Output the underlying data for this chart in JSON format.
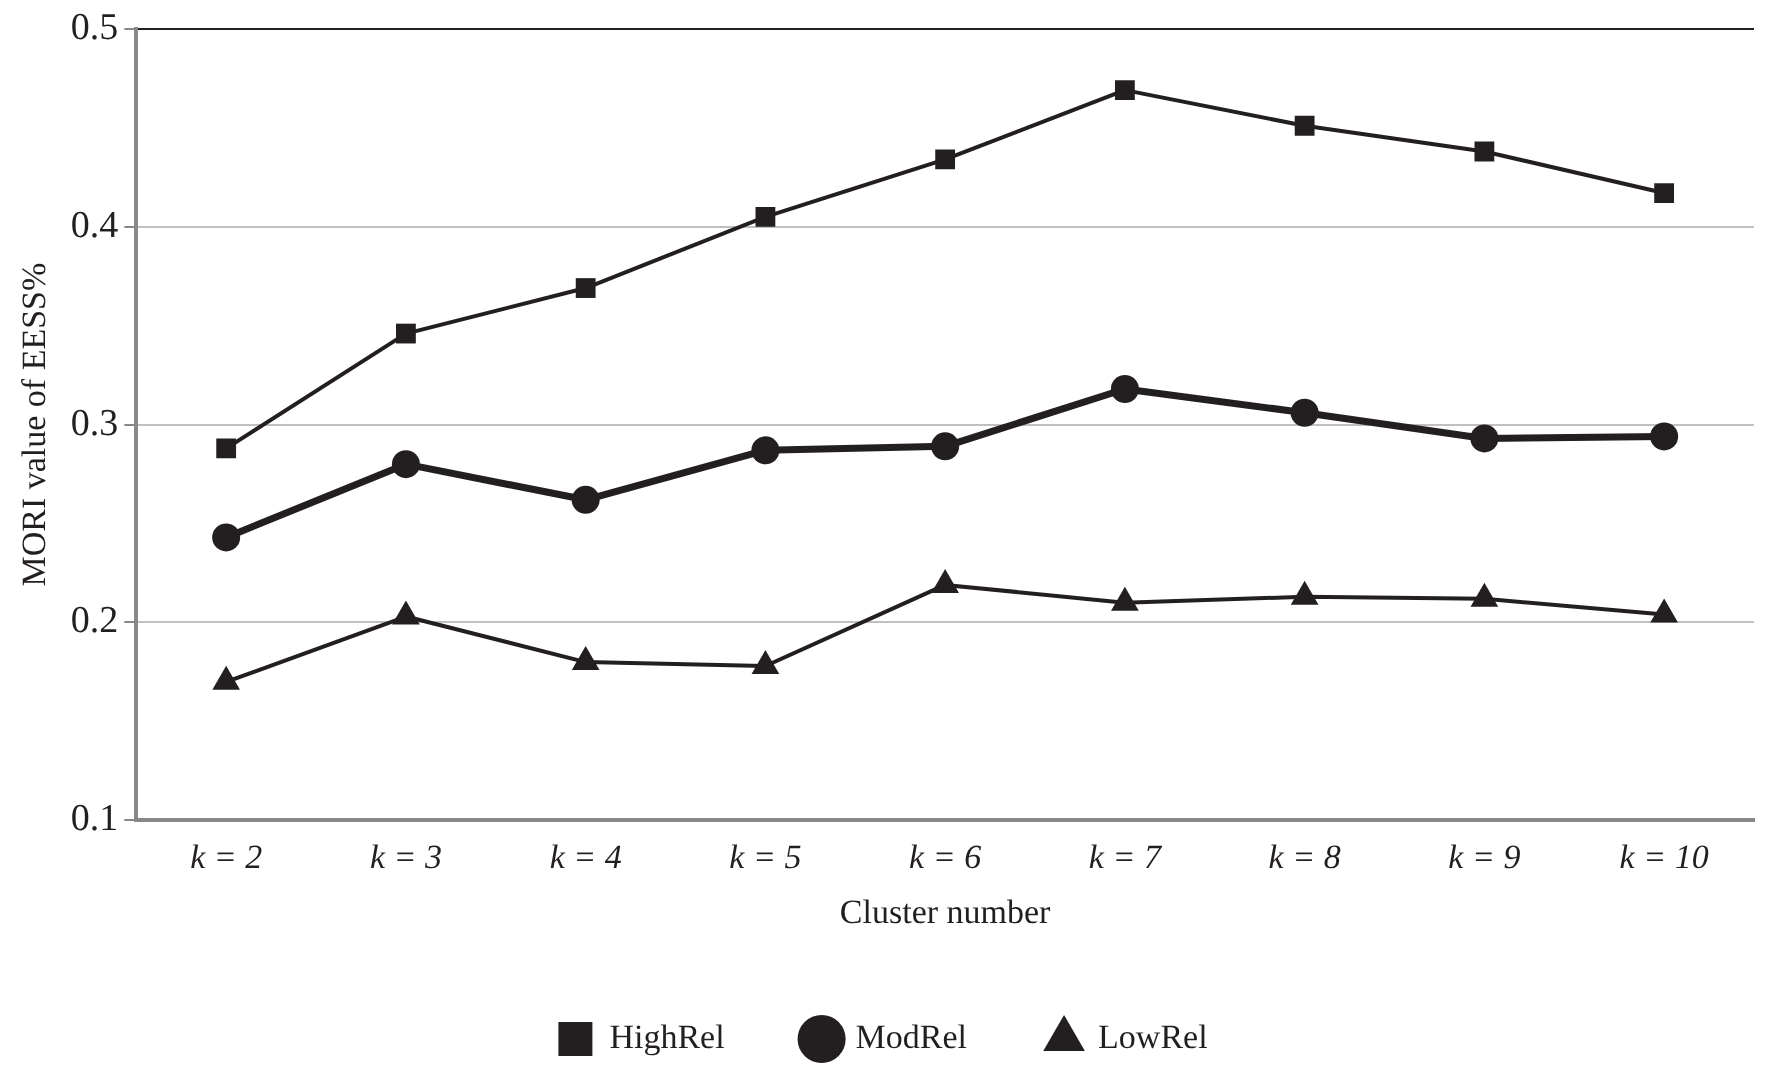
{
  "chart_data": {
    "type": "line",
    "xlabel": "Cluster number",
    "ylabel": "MORI value of EESS%",
    "categories": [
      "k = 2",
      "k = 3",
      "k = 4",
      "k = 5",
      "k = 6",
      "k = 7",
      "k = 8",
      "k = 9",
      "k = 10"
    ],
    "series": [
      {
        "name": "HighRel",
        "color": "#231f20",
        "marker": "square",
        "values": [
          0.288,
          0.346,
          0.369,
          0.405,
          0.434,
          0.469,
          0.451,
          0.438,
          0.417
        ]
      },
      {
        "name": "ModRel",
        "color": "#231f20",
        "marker": "circle",
        "values": [
          0.243,
          0.28,
          0.262,
          0.287,
          0.289,
          0.318,
          0.306,
          0.293,
          0.294
        ]
      },
      {
        "name": "LowRel",
        "color": "#231f20",
        "marker": "triangle",
        "values": [
          0.17,
          0.203,
          0.18,
          0.178,
          0.219,
          0.21,
          0.213,
          0.212,
          0.204
        ]
      }
    ],
    "ylim": [
      0.1,
      0.5
    ],
    "yticks": [
      0.1,
      0.2,
      0.3,
      0.4,
      0.5
    ],
    "grid": "y",
    "legend": "bottom",
    "line_style": "solid"
  }
}
